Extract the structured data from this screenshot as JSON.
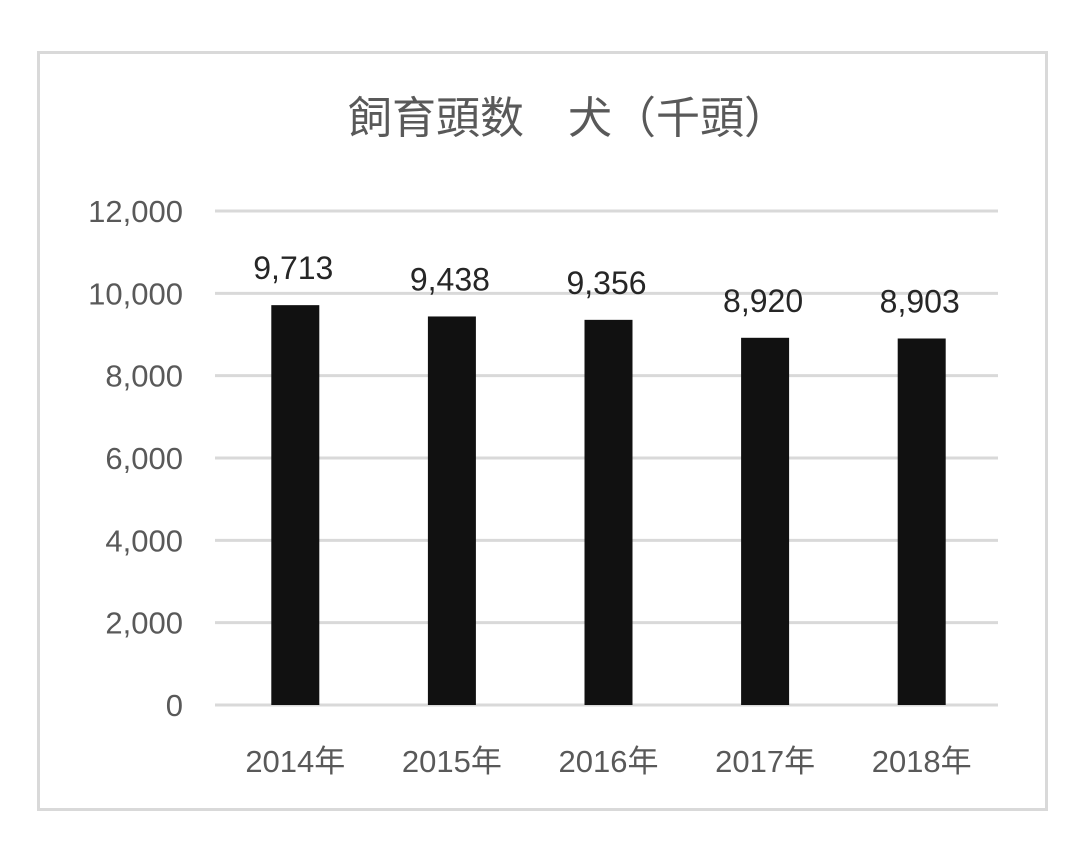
{
  "chart_data": {
    "type": "bar",
    "title": "飼育頭数　犬（千頭）",
    "categories": [
      "2014年",
      "2015年",
      "2016年",
      "2017年",
      "2018年"
    ],
    "values": [
      9713,
      9438,
      9356,
      8920,
      8903
    ],
    "value_labels": [
      "9,713",
      "9,438",
      "9,356",
      "8,920",
      "8,903"
    ],
    "yticks": [
      "0",
      "2,000",
      "4,000",
      "6,000",
      "8,000",
      "10,000",
      "12,000"
    ],
    "ylim": [
      0,
      12000
    ],
    "grid": true,
    "legend": "none",
    "colors": {
      "bar": "#111111",
      "grid": "#d9d9d9",
      "text": "#595959"
    }
  }
}
